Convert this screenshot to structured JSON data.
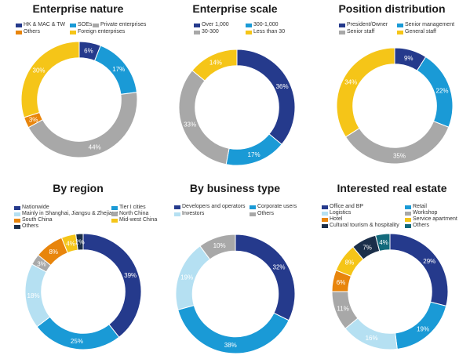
{
  "chart_data": [
    {
      "type": "pie",
      "title": "Enterprise nature",
      "categories": [
        "HK & MAC & TW",
        "SOEs",
        "Private enterprises",
        "Others",
        "Foreign enterprises"
      ],
      "slices": [
        {
          "name": "HK & MAC & TW",
          "value": 6,
          "label": "6%",
          "color": "#253a8c"
        },
        {
          "name": "SOEs",
          "value": 17,
          "label": "17%",
          "color": "#1a9ad6"
        },
        {
          "name": "Private enterprises",
          "value": 44,
          "label": "44%",
          "color": "#a8a8a8"
        },
        {
          "name": "Others",
          "value": 3,
          "label": "3%",
          "color": "#e8850c"
        },
        {
          "name": "Foreign enterprises",
          "value": 30,
          "label": "30%",
          "color": "#f5c518"
        }
      ]
    },
    {
      "type": "pie",
      "title": "Enterprise scale",
      "categories": [
        "Over 1,000",
        "300-1,000",
        "30-300",
        "Less than 30"
      ],
      "slices": [
        {
          "name": "Over 1,000",
          "value": 36,
          "label": "36%",
          "color": "#253a8c"
        },
        {
          "name": "300-1,000",
          "value": 17,
          "label": "17%",
          "color": "#1a9ad6"
        },
        {
          "name": "30-300",
          "value": 33,
          "label": "33%",
          "color": "#a8a8a8"
        },
        {
          "name": "Less than 30",
          "value": 14,
          "label": "14%",
          "color": "#f5c518"
        }
      ]
    },
    {
      "type": "pie",
      "title": "Position distribution",
      "categories": [
        "President/Owner",
        "Senior management",
        "Senior staff",
        "General staff"
      ],
      "slices": [
        {
          "name": "President/Owner",
          "value": 9,
          "label": "9%",
          "color": "#253a8c"
        },
        {
          "name": "Senior management",
          "value": 22,
          "label": "22%",
          "color": "#1a9ad6"
        },
        {
          "name": "Senior staff",
          "value": 35,
          "label": "35%",
          "color": "#a8a8a8"
        },
        {
          "name": "General staff",
          "value": 34,
          "label": "34%",
          "color": "#f5c518"
        }
      ]
    },
    {
      "type": "pie",
      "title": "By region",
      "categories": [
        "Nationwide",
        "Tier I cities",
        "Mainly in Shanghai, Jiangsu & Zhejiang",
        "North China",
        "South China",
        "Mid-west China",
        "Others"
      ],
      "slices": [
        {
          "name": "Nationwide",
          "value": 39,
          "label": "39%",
          "color": "#253a8c"
        },
        {
          "name": "Tier I cities",
          "value": 25,
          "label": "25%",
          "color": "#1a9ad6"
        },
        {
          "name": "Mainly in Shanghai, Jiangsu & Zhejiang",
          "value": 18,
          "label": "18%",
          "color": "#b5e0f2"
        },
        {
          "name": "North China",
          "value": 3,
          "label": "3%",
          "color": "#a8a8a8"
        },
        {
          "name": "South China",
          "value": 8,
          "label": "8%",
          "color": "#e8850c"
        },
        {
          "name": "Mid-west China",
          "value": 4,
          "label": "4%",
          "color": "#f5c518"
        },
        {
          "name": "Others",
          "value": 2,
          "label": "2%",
          "color": "#1b2f4a"
        }
      ]
    },
    {
      "type": "pie",
      "title": "By business type",
      "categories": [
        "Developers and operators",
        "Corporate users",
        "Investors",
        "Others"
      ],
      "slices": [
        {
          "name": "Developers and operators",
          "value": 32,
          "label": "32%",
          "color": "#253a8c"
        },
        {
          "name": "Corporate users",
          "value": 38,
          "label": "38%",
          "color": "#1a9ad6"
        },
        {
          "name": "Investors",
          "value": 19,
          "label": "19%",
          "color": "#b5e0f2"
        },
        {
          "name": "Others",
          "value": 10,
          "label": "10%",
          "color": "#a8a8a8"
        }
      ]
    },
    {
      "type": "pie",
      "title": "Interested real estate",
      "categories": [
        "Office and BP",
        "Retail",
        "Logistics",
        "Workshop",
        "Hotel",
        "Service apartment",
        "Cultural tourism & hospitality",
        "Others"
      ],
      "slices": [
        {
          "name": "Office and BP",
          "value": 29,
          "label": "29%",
          "color": "#253a8c"
        },
        {
          "name": "Retail",
          "value": 19,
          "label": "19%",
          "color": "#1a9ad6"
        },
        {
          "name": "Logistics",
          "value": 16,
          "label": "16%",
          "color": "#b5e0f2"
        },
        {
          "name": "Workshop",
          "value": 11,
          "label": "11%",
          "color": "#a8a8a8"
        },
        {
          "name": "Hotel",
          "value": 6,
          "label": "6%",
          "color": "#e8850c"
        },
        {
          "name": "Service apartment",
          "value": 8,
          "label": "8%",
          "color": "#f5c518"
        },
        {
          "name": "Cultural tourism & hospitality",
          "value": 7,
          "label": "7%",
          "color": "#1b2f4a"
        },
        {
          "name": "Others",
          "value": 4,
          "label": "4%",
          "color": "#136a7c"
        }
      ]
    }
  ]
}
